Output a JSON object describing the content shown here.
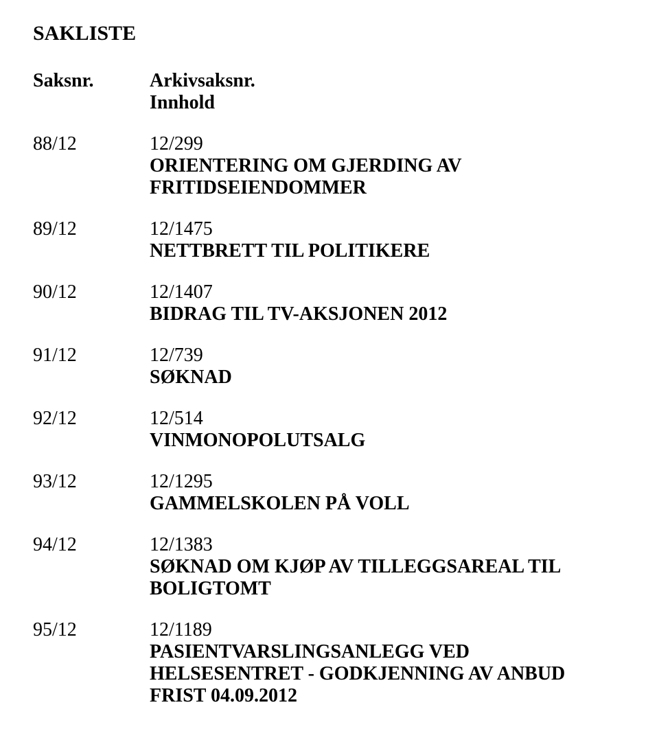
{
  "title": "SAKLISTE",
  "header": {
    "saksnr_label": "Saksnr.",
    "arkiv_label": "Arkivsaksnr.",
    "innhold_label": "Innhold"
  },
  "entries": [
    {
      "saksnr": "88/12",
      "arkiv": "12/299",
      "desc": "ORIENTERING OM GJERDING AV FRITIDSEIENDOMMER"
    },
    {
      "saksnr": "89/12",
      "arkiv": "12/1475",
      "desc": "NETTBRETT TIL POLITIKERE"
    },
    {
      "saksnr": "90/12",
      "arkiv": "12/1407",
      "desc": "BIDRAG TIL TV-AKSJONEN 2012"
    },
    {
      "saksnr": "91/12",
      "arkiv": "12/739",
      "desc": "SØKNAD"
    },
    {
      "saksnr": "92/12",
      "arkiv": "12/514",
      "desc": "VINMONOPOLUTSALG"
    },
    {
      "saksnr": "93/12",
      "arkiv": "12/1295",
      "desc": "GAMMELSKOLEN PÅ VOLL"
    },
    {
      "saksnr": "94/12",
      "arkiv": "12/1383",
      "desc": "SØKNAD OM KJØP AV TILLEGGSAREAL TIL BOLIGTOMT"
    },
    {
      "saksnr": "95/12",
      "arkiv": "12/1189",
      "desc": "PASIENTVARSLINGSANLEGG VED HELSESENTRET - GODKJENNING AV ANBUD FRIST 04.09.2012"
    }
  ]
}
